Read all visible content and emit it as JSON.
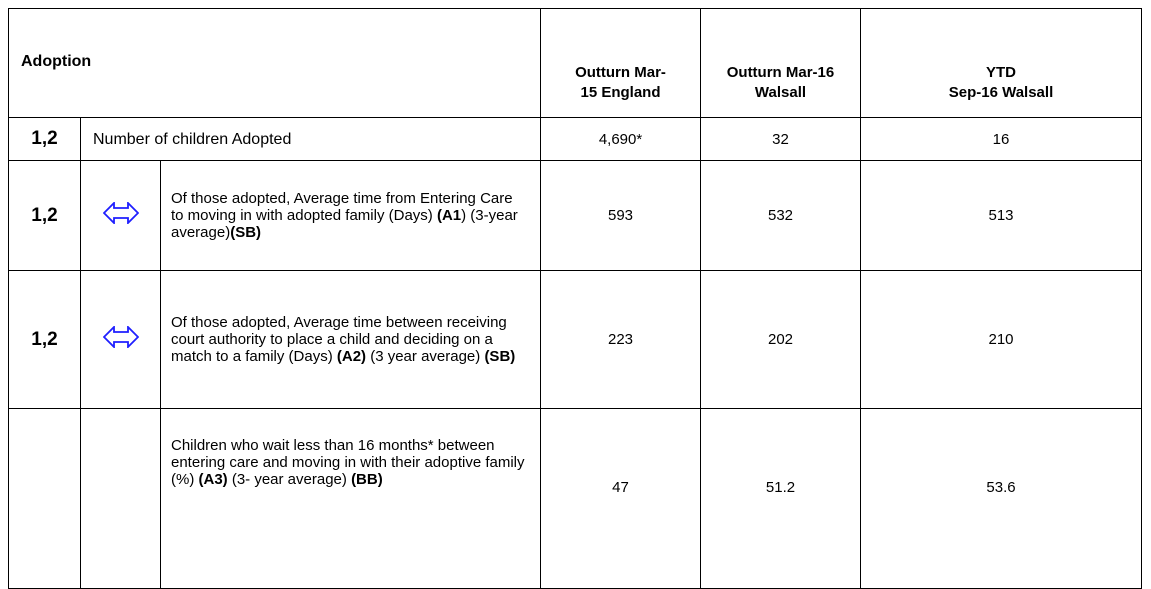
{
  "header": {
    "title": "Adoption",
    "columns": [
      [
        "Outturn Mar-",
        "15 England"
      ],
      [
        "Outturn Mar-16",
        "Walsall"
      ],
      [
        "YTD",
        "Sep-16 Walsall"
      ]
    ]
  },
  "rows": [
    {
      "code": "1,2",
      "description": [
        "Number of children Adopted"
      ],
      "values": [
        "4,690*",
        "32",
        "16"
      ]
    },
    {
      "code": "1,2",
      "description": [
        "Of those adopted, Average time from Entering Care to moving in with adopted family (Days) ",
        "(A1",
        ") (3-year average)",
        "(SB)"
      ],
      "values": [
        "593",
        "532",
        "513"
      ]
    },
    {
      "code": "1,2",
      "description": [
        "Of those adopted, Average time between receiving court authority  to place a child and deciding on a match to a family (Days) ",
        "(A2)",
        " (3 year average) ",
        "(SB)"
      ],
      "values": [
        "223",
        "202",
        "210"
      ]
    },
    {
      "description": [
        "Children who wait less than 16 months* between entering care and moving in with their adoptive family (%) ",
        "(A3)",
        " (3- year average) ",
        "(BB)"
      ],
      "values": [
        "47",
        "51.2",
        "53.6"
      ]
    }
  ]
}
